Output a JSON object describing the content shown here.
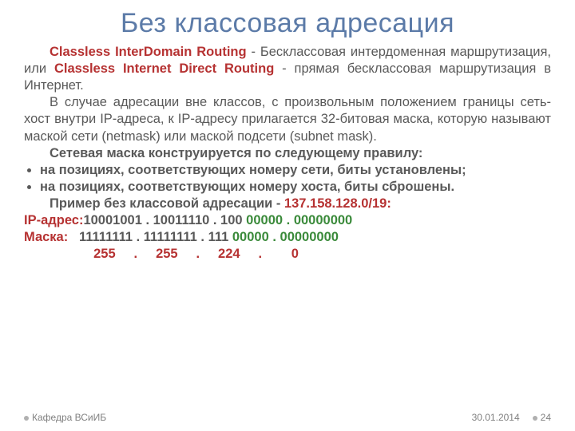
{
  "colors": {
    "title": "#5c7ba8",
    "body_dark": "#595959",
    "accent_red": "#b63232",
    "accent_green": "#3a8a3a",
    "footer_bullet": "#b0b0b0",
    "footer_text": "#808080"
  },
  "title": "Без классовая адресация",
  "p1": {
    "s1": "Classless InterDomain Routing",
    "s2": " - Бесклассовая интердоменная маршрутизация, или ",
    "s3": "Classless Internet Direct Routing",
    "s4": " - прямая бесклассовая маршрутизация в Интернет."
  },
  "p2": "В случае адресации вне классов, с произвольным положением границы сеть-хост внутри IP-адреса, к IP-адресу прилагается 32-битовая маска, которую называют маской сети (netmask) или маской подсети (subnet mask).",
  "p3": "Сетевая маска конструируется по следующему правилу:",
  "rules": [
    "на позициях, соответствующих номеру сети, биты установлены;",
    "на позициях, соответствующих номеру хоста, биты сброшены."
  ],
  "p4": {
    "s1": "Пример без классовой адресации - ",
    "s2": "137.158.128.0/19:"
  },
  "ip_row": {
    "label": "IP-адрес:",
    "a": "10001001 . 10011110 . 100",
    "b": " 00000 . 00000000"
  },
  "mask_row": {
    "label": "Маска:",
    "pad": "   ",
    "a": "11111111 . 11111111 . 111",
    "b": " 00000 . 00000000"
  },
  "dec_row": {
    "pad": "                   ",
    "text": "255     .     255     .     224     .        0"
  },
  "footer": {
    "dept": "Кафедра ВСиИБ",
    "date": "30.01.2014",
    "page": "24"
  }
}
